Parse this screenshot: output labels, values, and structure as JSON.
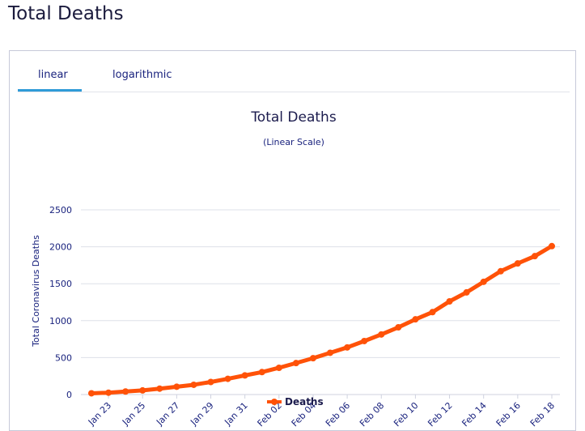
{
  "page": {
    "heading": "Total Deaths"
  },
  "tabs": [
    {
      "label": "linear",
      "active": true
    },
    {
      "label": "logarithmic",
      "active": false
    }
  ],
  "colors": {
    "series": "#ff5208",
    "accent": "#2f9bd8",
    "text": "#1a237e"
  },
  "chart_data": {
    "type": "line",
    "title": "Total Deaths",
    "subtitle": "(Linear Scale)",
    "xlabel": "",
    "ylabel": "Total Coronavirus Deaths",
    "ylim": [
      0,
      2500
    ],
    "yticks": [
      0,
      500,
      1000,
      1500,
      2000,
      2500
    ],
    "grid": true,
    "legend": "bottom-center",
    "x": [
      "Jan 22",
      "Jan 23",
      "Jan 24",
      "Jan 25",
      "Jan 26",
      "Jan 27",
      "Jan 28",
      "Jan 29",
      "Jan 30",
      "Jan 31",
      "Feb 01",
      "Feb 02",
      "Feb 03",
      "Feb 04",
      "Feb 05",
      "Feb 06",
      "Feb 07",
      "Feb 08",
      "Feb 09",
      "Feb 10",
      "Feb 11",
      "Feb 12",
      "Feb 13",
      "Feb 14",
      "Feb 15",
      "Feb 16",
      "Feb 17",
      "Feb 18"
    ],
    "xtick_labels": [
      "Jan 23",
      "Jan 25",
      "Jan 27",
      "Jan 29",
      "Jan 31",
      "Feb 02",
      "Feb 04",
      "Feb 06",
      "Feb 08",
      "Feb 10",
      "Feb 12",
      "Feb 14",
      "Feb 16",
      "Feb 18"
    ],
    "series": [
      {
        "name": "Deaths",
        "values": [
          17,
          25,
          41,
          56,
          80,
          106,
          132,
          170,
          213,
          259,
          304,
          362,
          426,
          492,
          565,
          638,
          724,
          813,
          910,
          1018,
          1115,
          1261,
          1383,
          1526,
          1669,
          1775,
          1873,
          2009
        ]
      }
    ]
  }
}
